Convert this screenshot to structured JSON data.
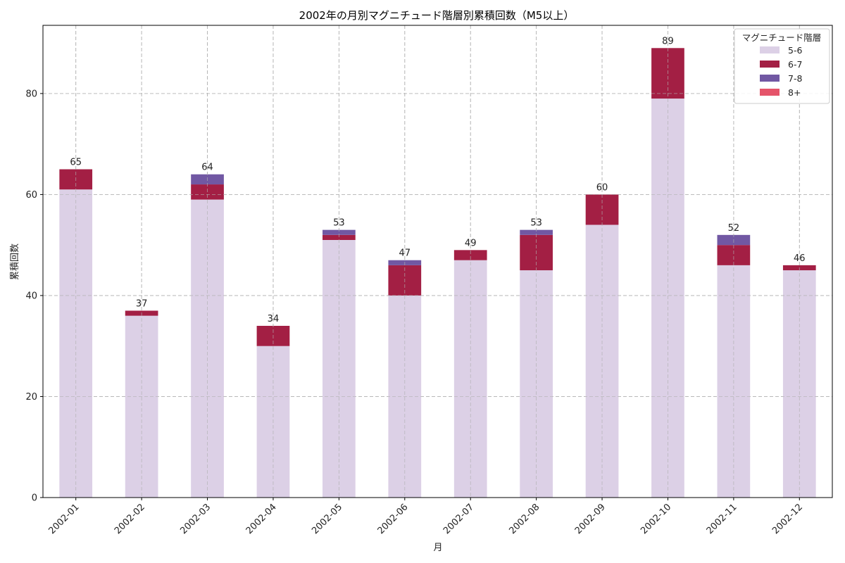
{
  "chart_data": {
    "type": "bar",
    "stacked": true,
    "title": "2002年の月別マグニチュード階層別累積回数（M5以上）",
    "xlabel": "月",
    "ylabel": "累積回数",
    "ylim": [
      0,
      93.5
    ],
    "yticks": [
      0,
      20,
      40,
      60,
      80
    ],
    "grid": true,
    "legend_title": "マグニチュード階層",
    "legend_position": "upper right",
    "categories": [
      "2002-01",
      "2002-02",
      "2002-03",
      "2002-04",
      "2002-05",
      "2002-06",
      "2002-07",
      "2002-08",
      "2002-09",
      "2002-10",
      "2002-11",
      "2002-12"
    ],
    "series": [
      {
        "name": "5-6",
        "color": "#dcd0e6",
        "values": [
          61,
          36,
          59,
          30,
          51,
          40,
          47,
          45,
          54,
          79,
          46,
          45
        ]
      },
      {
        "name": "6-7",
        "color": "#a31f44",
        "values": [
          4,
          1,
          3,
          4,
          1,
          6,
          2,
          7,
          6,
          10,
          4,
          1
        ]
      },
      {
        "name": "7-8",
        "color": "#7158a3",
        "values": [
          0,
          0,
          2,
          0,
          1,
          1,
          0,
          1,
          0,
          0,
          2,
          0
        ]
      },
      {
        "name": "8+",
        "color": "#e5546a",
        "values": [
          0,
          0,
          0,
          0,
          0,
          0,
          0,
          0,
          0,
          0,
          0,
          0
        ]
      }
    ],
    "totals": [
      65,
      37,
      64,
      34,
      53,
      47,
      49,
      53,
      60,
      89,
      52,
      46
    ]
  }
}
